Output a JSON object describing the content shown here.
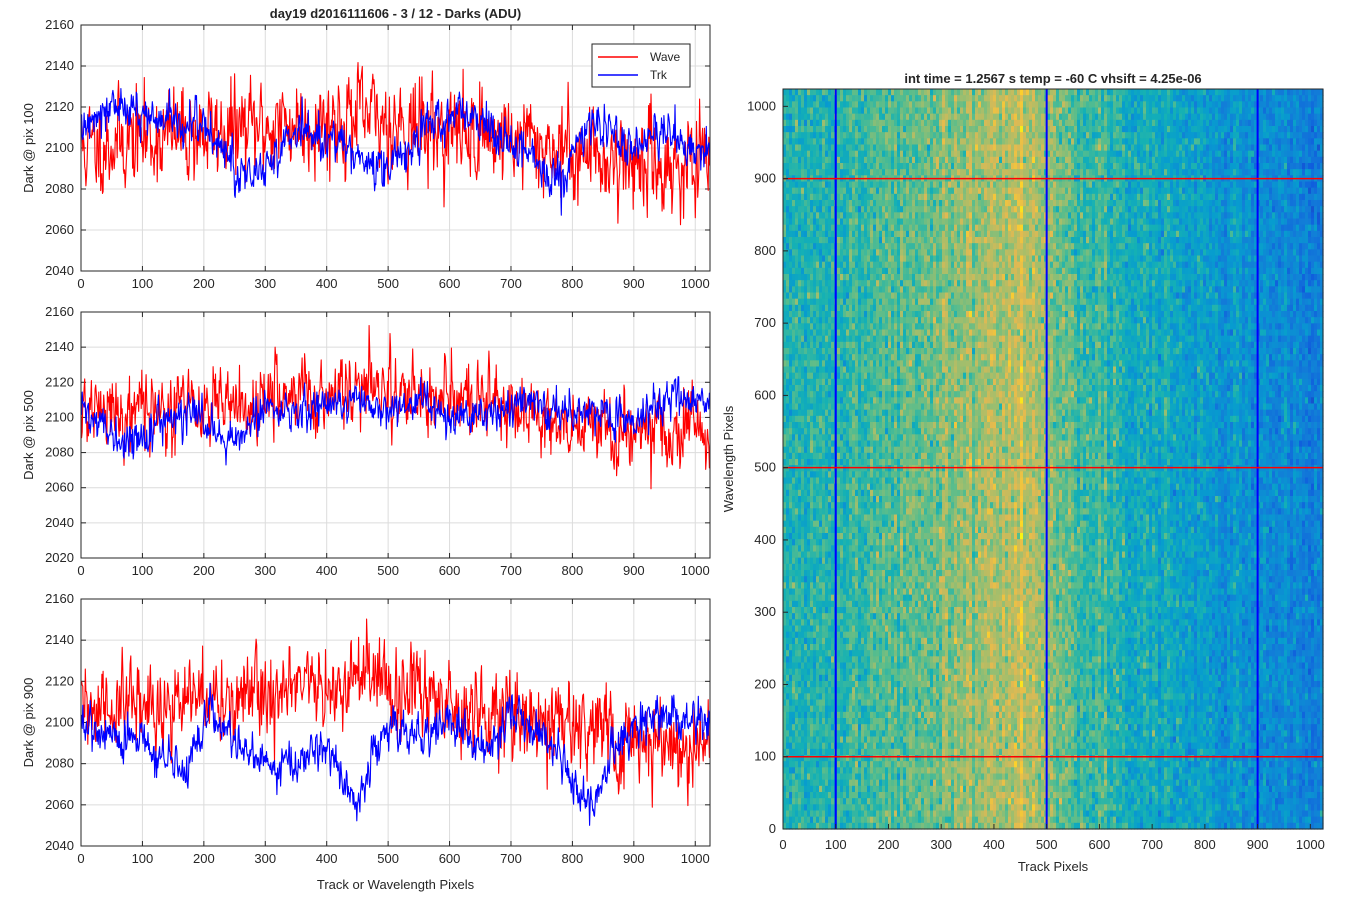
{
  "chart_data": [
    {
      "type": "line",
      "title": "day19 d2016111606 - 3 / 12 - Darks (ADU)",
      "xlabel": "",
      "ylabel": "Dark @ pix 100",
      "xlim": [
        0,
        1024
      ],
      "ylim": [
        2040,
        2160
      ],
      "xticks": [
        "0",
        "100",
        "200",
        "300",
        "400",
        "500",
        "600",
        "700",
        "800",
        "900",
        "1000"
      ],
      "yticks": [
        "2040",
        "2060",
        "2080",
        "2100",
        "2120",
        "2140",
        "2160"
      ],
      "grid": true,
      "legend": {
        "placement": "top-right",
        "entries": [
          "Wave",
          "Trk"
        ]
      },
      "series": [
        {
          "name": "Wave",
          "color": "#ff0000",
          "trend_x": [
            0,
            100,
            200,
            300,
            400,
            450,
            500,
            600,
            700,
            800,
            900,
            1000,
            1024
          ],
          "trend_y": [
            2100,
            2105,
            2107,
            2110,
            2113,
            2115,
            2113,
            2108,
            2105,
            2098,
            2093,
            2090,
            2090
          ],
          "noise_sd": 11,
          "seed": 11
        },
        {
          "name": "Trk",
          "color": "#0000ff",
          "trend_x": [
            0,
            40,
            80,
            150,
            200,
            250,
            280,
            350,
            420,
            500,
            560,
            620,
            700,
            780,
            830,
            880,
            950,
            1024
          ],
          "trend_y": [
            2108,
            2122,
            2118,
            2112,
            2112,
            2090,
            2085,
            2110,
            2100,
            2090,
            2110,
            2118,
            2100,
            2085,
            2115,
            2100,
            2108,
            2096
          ],
          "noise_sd": 5,
          "seed": 12
        }
      ]
    },
    {
      "type": "line",
      "xlabel": "",
      "ylabel": "Dark @ pix 500",
      "xlim": [
        0,
        1024
      ],
      "ylim": [
        2020,
        2160
      ],
      "xticks": [
        "0",
        "100",
        "200",
        "300",
        "400",
        "500",
        "600",
        "700",
        "800",
        "900",
        "1000"
      ],
      "yticks": [
        "2020",
        "2040",
        "2060",
        "2080",
        "2100",
        "2120",
        "2140",
        "2160"
      ],
      "grid": true,
      "series": [
        {
          "name": "Wave",
          "color": "#ff0000",
          "trend_x": [
            0,
            100,
            200,
            300,
            400,
            450,
            500,
            600,
            700,
            800,
            900,
            1000,
            1024
          ],
          "trend_y": [
            2103,
            2105,
            2105,
            2110,
            2115,
            2118,
            2117,
            2110,
            2105,
            2097,
            2092,
            2090,
            2090
          ],
          "noise_sd": 10,
          "seed": 21
        },
        {
          "name": "Trk",
          "color": "#0000ff",
          "trend_x": [
            0,
            60,
            100,
            140,
            200,
            250,
            300,
            350,
            400,
            450,
            500,
            550,
            600,
            700,
            800,
            900,
            950,
            1024
          ],
          "trend_y": [
            2105,
            2085,
            2090,
            2100,
            2100,
            2085,
            2108,
            2100,
            2110,
            2108,
            2100,
            2110,
            2098,
            2108,
            2105,
            2098,
            2112,
            2108
          ],
          "noise_sd": 5,
          "seed": 22
        }
      ]
    },
    {
      "type": "line",
      "xlabel": "Track or Wavelength Pixels",
      "ylabel": "Dark @ pix 900",
      "xlim": [
        0,
        1024
      ],
      "ylim": [
        2040,
        2160
      ],
      "xticks": [
        "0",
        "100",
        "200",
        "300",
        "400",
        "500",
        "600",
        "700",
        "800",
        "900",
        "1000"
      ],
      "yticks": [
        "2040",
        "2060",
        "2080",
        "2100",
        "2120",
        "2140",
        "2160"
      ],
      "grid": true,
      "series": [
        {
          "name": "Wave",
          "color": "#ff0000",
          "trend_x": [
            0,
            100,
            200,
            300,
            400,
            450,
            500,
            600,
            700,
            800,
            900,
            1000,
            1024
          ],
          "trend_y": [
            2105,
            2108,
            2110,
            2113,
            2117,
            2120,
            2117,
            2110,
            2106,
            2097,
            2092,
            2088,
            2088
          ],
          "noise_sd": 10,
          "seed": 31
        },
        {
          "name": "Trk",
          "color": "#0000ff",
          "trend_x": [
            0,
            50,
            100,
            170,
            210,
            260,
            300,
            350,
            400,
            450,
            500,
            550,
            600,
            650,
            700,
            750,
            830,
            860,
            900,
            950,
            1024
          ],
          "trend_y": [
            2100,
            2095,
            2090,
            2075,
            2105,
            2085,
            2080,
            2082,
            2085,
            2060,
            2100,
            2090,
            2100,
            2085,
            2105,
            2095,
            2058,
            2085,
            2098,
            2104,
            2098
          ],
          "noise_sd": 5,
          "seed": 32
        }
      ]
    },
    {
      "type": "heatmap",
      "title": "int time = 1.2567 s    temp = -60 C    vhsift = 4.25e-06",
      "xlabel": "Track Pixels",
      "ylabel": "Wavelength Pixels",
      "xlim": [
        0,
        1024
      ],
      "ylim": [
        0,
        1024
      ],
      "xticks": [
        "0",
        "100",
        "200",
        "300",
        "400",
        "500",
        "600",
        "700",
        "800",
        "900",
        "1000"
      ],
      "yticks": [
        "0",
        "100",
        "200",
        "300",
        "400",
        "500",
        "600",
        "700",
        "800",
        "900",
        "1000"
      ],
      "colormap": "parula",
      "column_profile_x": [
        0,
        100,
        250,
        400,
        460,
        500,
        560,
        650,
        750,
        850,
        950,
        1024
      ],
      "column_profile_level": [
        0.5,
        0.55,
        0.62,
        0.74,
        0.78,
        0.72,
        0.6,
        0.52,
        0.45,
        0.4,
        0.34,
        0.3
      ],
      "overlay_lines": [
        {
          "orientation": "vertical",
          "value": 100,
          "color": "#0000ff"
        },
        {
          "orientation": "vertical",
          "value": 500,
          "color": "#0000ff"
        },
        {
          "orientation": "vertical",
          "value": 900,
          "color": "#0000ff"
        },
        {
          "orientation": "horizontal",
          "value": 100,
          "color": "#ff0000"
        },
        {
          "orientation": "horizontal",
          "value": 500,
          "color": "#ff0000"
        },
        {
          "orientation": "horizontal",
          "value": 900,
          "color": "#ff0000"
        }
      ]
    }
  ]
}
